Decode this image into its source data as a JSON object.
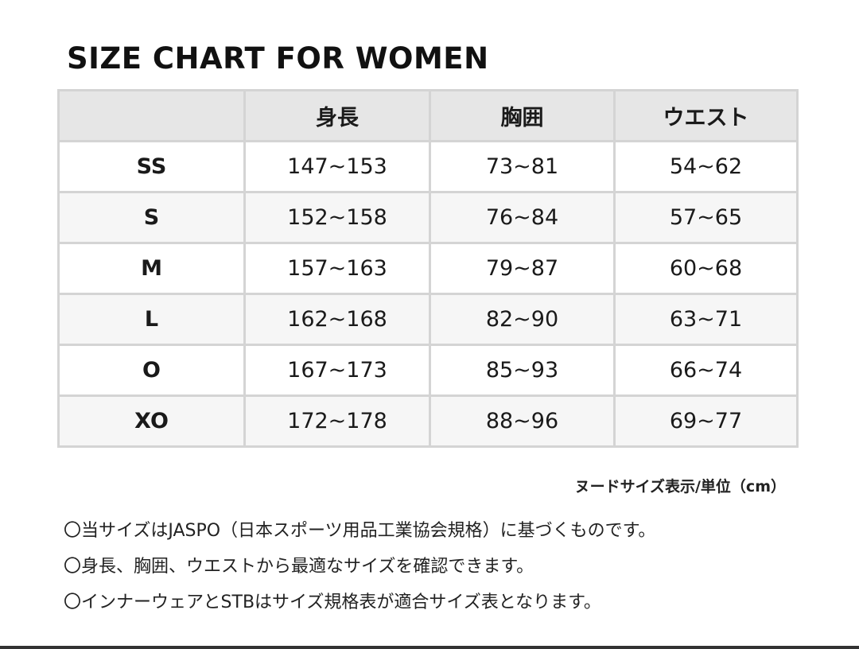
{
  "title": "SIZE CHART FOR WOMEN",
  "table": {
    "headers": [
      "",
      "身長",
      "胸囲",
      "ウエスト"
    ],
    "rows": [
      [
        "SS",
        "147~153",
        "73~81",
        "54~62"
      ],
      [
        "S",
        "152~158",
        "76~84",
        "57~65"
      ],
      [
        "M",
        "157~163",
        "79~87",
        "60~68"
      ],
      [
        "L",
        "162~168",
        "82~90",
        "63~71"
      ],
      [
        "O",
        "167~173",
        "85~93",
        "66~74"
      ],
      [
        "XO",
        "172~178",
        "88~96",
        "69~77"
      ]
    ]
  },
  "unit_note": "ヌードサイズ表示/単位（cm）",
  "notes": [
    "〇当サイズはJASPO（日本スポーツ用品工業協会規格）に基づくものです。",
    "〇身長、胸囲、ウエストから最適なサイズを確認できます。",
    "〇インナーウェアとSTBはサイズ規格表が適合サイズ表となります。"
  ]
}
